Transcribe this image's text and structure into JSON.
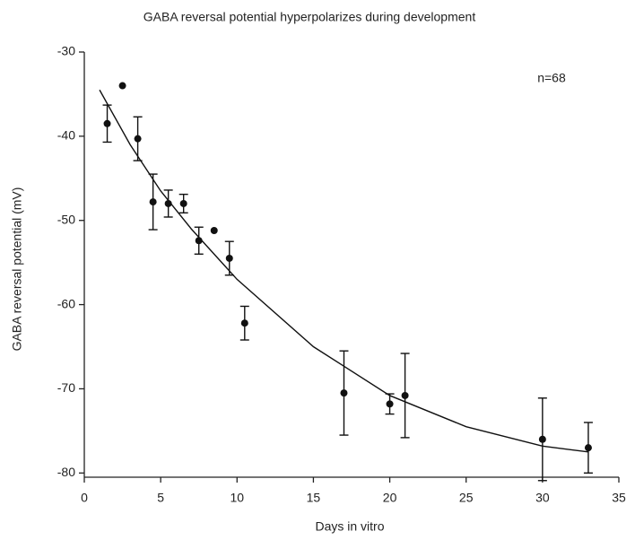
{
  "chart_data": {
    "type": "scatter",
    "title": "GABA reversal potential hyperpolarizes during development",
    "xlabel": "Days in vitro",
    "ylabel": "GABA reversal potential (mV)",
    "annotation": "n=68",
    "xlim": [
      0,
      35
    ],
    "xticks": [
      0,
      5,
      10,
      15,
      20,
      25,
      30,
      35
    ],
    "ylim": [
      -80.5,
      -30
    ],
    "yticks": [
      -30,
      -40,
      -50,
      -60,
      -70,
      -80
    ],
    "color": "#111",
    "points": {
      "x": [
        1.5,
        2.5,
        3.5,
        4.5,
        5.5,
        6.5,
        7.5,
        8.5,
        9.5,
        10.5,
        17,
        20,
        21,
        30,
        33
      ],
      "values": [
        -38.5,
        -34,
        -40.3,
        -47.8,
        -48,
        -48,
        -52.4,
        -51.2,
        -54.5,
        -62.2,
        -70.5,
        -71.8,
        -70.8,
        -76,
        -77
      ],
      "errors": [
        2.2,
        null,
        2.6,
        3.3,
        1.6,
        1.1,
        1.6,
        null,
        2,
        2,
        5,
        1.2,
        5,
        4.9,
        3
      ]
    },
    "fit": {
      "x": [
        1,
        3,
        5,
        7,
        10,
        15,
        20,
        25,
        30,
        33
      ],
      "values": [
        -34.5,
        -41,
        -46.5,
        -51,
        -57,
        -65,
        -70.8,
        -74.5,
        -76.8,
        -77.5
      ]
    }
  }
}
